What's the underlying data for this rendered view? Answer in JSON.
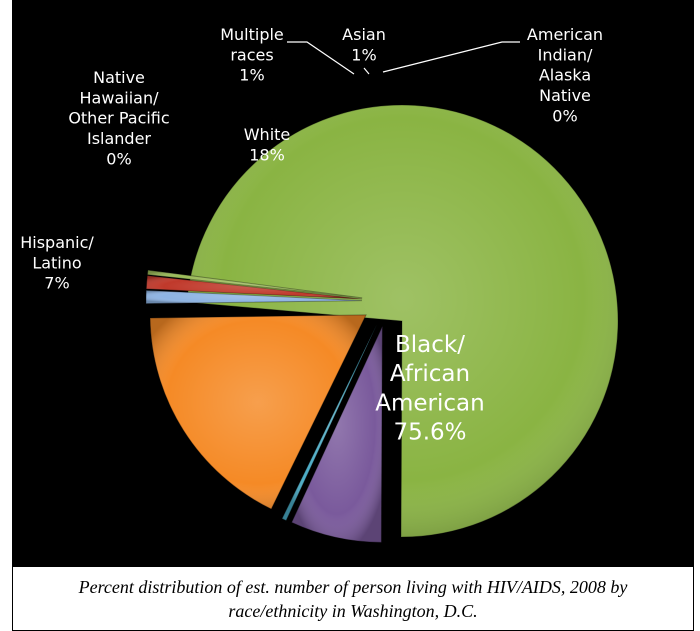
{
  "caption": "Percent distribution of est. number of person living with HIV/AIDS, 2008 by race/ethnicity in Washington, D.C.",
  "chart_data": {
    "type": "pie",
    "title": "",
    "legend": "none",
    "unit": "%",
    "slices": [
      {
        "label": [
          "Black/",
          "African",
          "American"
        ],
        "value": 75.6,
        "value_label": "75.6%",
        "color": "#8ab443",
        "exploded": false
      },
      {
        "label": [
          "Hispanic/",
          "Latino"
        ],
        "value": 7,
        "value_label": "7%",
        "color": "#7a5a9c",
        "exploded": true
      },
      {
        "label": [
          "Native",
          "Hawaiian/",
          "Other Pacific",
          "Islander"
        ],
        "value": 0,
        "value_label": "0%",
        "color": "#4bacc6",
        "exploded": true
      },
      {
        "label": [
          "White"
        ],
        "value": 18,
        "value_label": "18%",
        "color": "#f58a26",
        "exploded": true
      },
      {
        "label": [
          "Multiple",
          "races"
        ],
        "value": 1,
        "value_label": "1%",
        "color": "#8eb4e3",
        "exploded": true
      },
      {
        "label": [
          "Asian"
        ],
        "value": 1,
        "value_label": "1%",
        "color": "#c0392b",
        "exploded": true
      },
      {
        "label": [
          "American",
          "Indian/",
          "Alaska",
          "Native"
        ],
        "value": 0,
        "value_label": "0%",
        "color": "#9bbb59",
        "exploded": true
      }
    ]
  }
}
